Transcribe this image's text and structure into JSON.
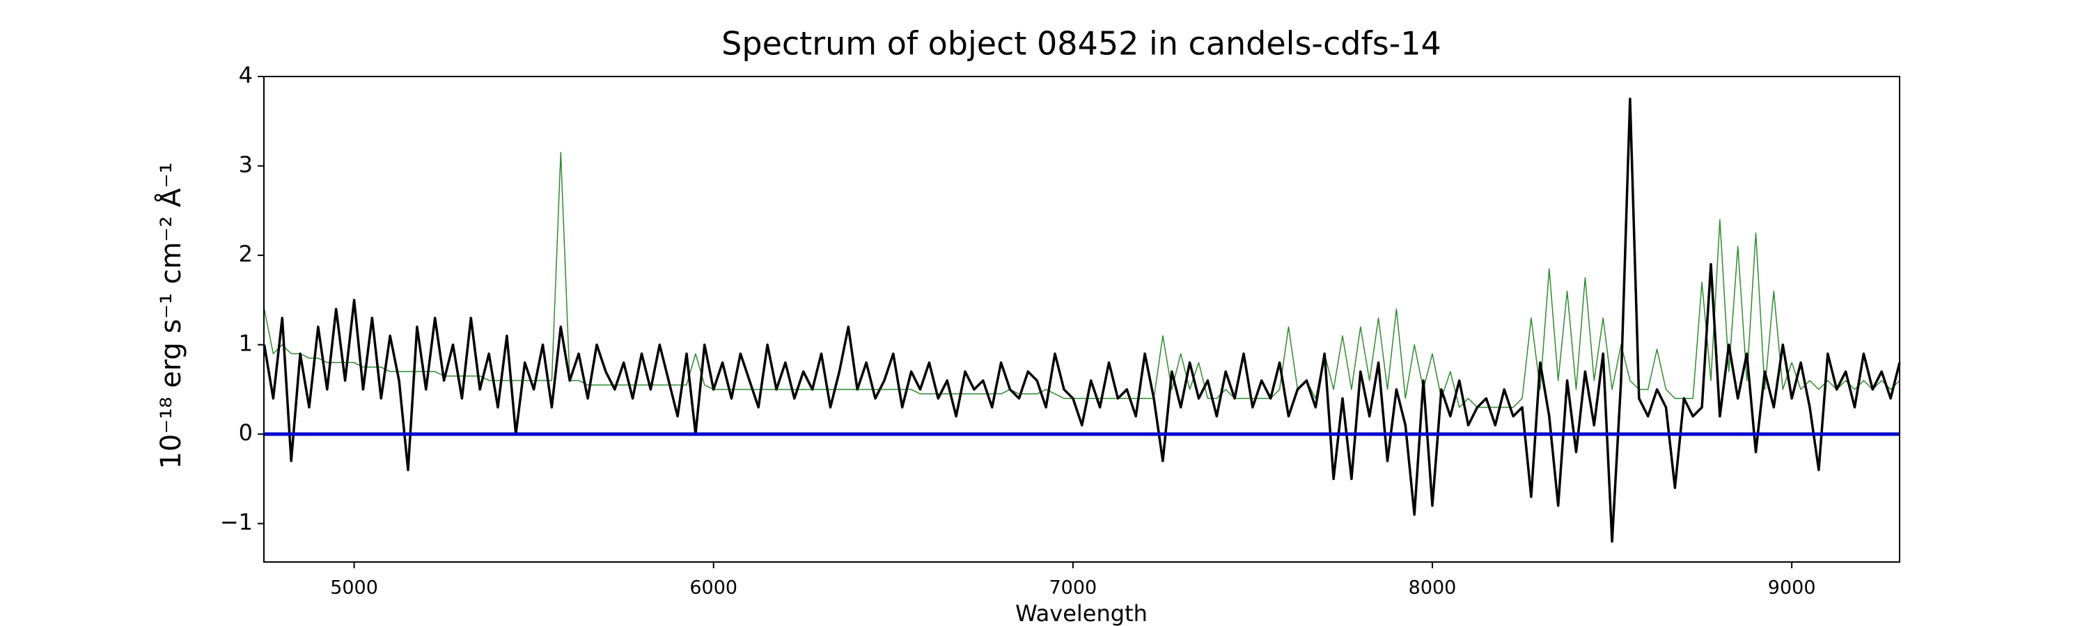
{
  "chart_data": {
    "type": "line",
    "title": "Spectrum of object 08452 in candels-cdfs-14",
    "xlabel": "Wavelength",
    "ylabel": "10⁻¹⁸ erg s⁻¹ cm⁻² Å⁻¹",
    "xlim": [
      4749,
      9300
    ],
    "ylim": [
      -1.43,
      4
    ],
    "xticks": [
      5000,
      6000,
      7000,
      8000,
      9000
    ],
    "yticks": [
      {
        "value": -1,
        "label": "−1"
      },
      0,
      1,
      2,
      3,
      4
    ],
    "hline": {
      "value": 0,
      "color": "#0000cc"
    },
    "x": [
      4750,
      4775,
      4800,
      4825,
      4850,
      4875,
      4900,
      4925,
      4950,
      4975,
      5000,
      5025,
      5050,
      5075,
      5100,
      5125,
      5150,
      5175,
      5200,
      5225,
      5250,
      5275,
      5300,
      5325,
      5350,
      5375,
      5400,
      5425,
      5450,
      5475,
      5500,
      5525,
      5550,
      5575,
      5600,
      5625,
      5650,
      5675,
      5700,
      5725,
      5750,
      5775,
      5800,
      5825,
      5850,
      5875,
      5900,
      5925,
      5950,
      5975,
      6000,
      6025,
      6050,
      6075,
      6100,
      6125,
      6150,
      6175,
      6200,
      6225,
      6250,
      6275,
      6300,
      6325,
      6350,
      6375,
      6400,
      6425,
      6450,
      6475,
      6500,
      6525,
      6550,
      6575,
      6600,
      6625,
      6650,
      6675,
      6700,
      6725,
      6750,
      6775,
      6800,
      6825,
      6850,
      6875,
      6900,
      6925,
      6950,
      6975,
      7000,
      7025,
      7050,
      7075,
      7100,
      7125,
      7150,
      7175,
      7200,
      7225,
      7250,
      7275,
      7300,
      7325,
      7350,
      7375,
      7400,
      7425,
      7450,
      7475,
      7500,
      7525,
      7550,
      7575,
      7600,
      7625,
      7650,
      7675,
      7700,
      7725,
      7750,
      7775,
      7800,
      7825,
      7850,
      7875,
      7900,
      7925,
      7950,
      7975,
      8000,
      8025,
      8050,
      8075,
      8100,
      8125,
      8150,
      8175,
      8200,
      8225,
      8250,
      8275,
      8300,
      8325,
      8350,
      8375,
      8400,
      8425,
      8450,
      8475,
      8500,
      8525,
      8550,
      8575,
      8600,
      8625,
      8650,
      8675,
      8700,
      8725,
      8750,
      8775,
      8800,
      8825,
      8850,
      8875,
      8900,
      8925,
      8950,
      8975,
      9000,
      9025,
      9050,
      9075,
      9100,
      9125,
      9150,
      9175,
      9200,
      9225,
      9250,
      9275,
      9300
    ],
    "series": [
      {
        "color": "#2e8b2e",
        "width": 1.5,
        "values": [
          1.4,
          0.9,
          1.0,
          0.9,
          0.9,
          0.85,
          0.85,
          0.8,
          0.8,
          0.8,
          0.8,
          0.75,
          0.75,
          0.75,
          0.7,
          0.7,
          0.7,
          0.7,
          0.7,
          0.7,
          0.65,
          0.65,
          0.65,
          0.65,
          0.65,
          0.6,
          0.6,
          0.6,
          0.6,
          0.6,
          0.6,
          0.6,
          0.6,
          3.15,
          0.6,
          0.6,
          0.55,
          0.55,
          0.55,
          0.55,
          0.55,
          0.55,
          0.55,
          0.55,
          0.55,
          0.55,
          0.55,
          0.55,
          0.9,
          0.55,
          0.5,
          0.5,
          0.5,
          0.5,
          0.5,
          0.5,
          0.5,
          0.5,
          0.5,
          0.5,
          0.5,
          0.5,
          0.5,
          0.5,
          0.5,
          0.5,
          0.5,
          0.5,
          0.5,
          0.5,
          0.5,
          0.5,
          0.5,
          0.45,
          0.45,
          0.45,
          0.45,
          0.45,
          0.45,
          0.45,
          0.45,
          0.45,
          0.45,
          0.5,
          0.45,
          0.45,
          0.45,
          0.5,
          0.45,
          0.4,
          0.4,
          0.4,
          0.4,
          0.4,
          0.4,
          0.4,
          0.4,
          0.4,
          0.4,
          0.4,
          1.1,
          0.5,
          0.9,
          0.5,
          0.8,
          0.4,
          0.4,
          0.5,
          0.4,
          0.4,
          0.4,
          0.4,
          0.4,
          0.5,
          1.2,
          0.5,
          0.6,
          0.4,
          0.9,
          0.5,
          1.1,
          0.5,
          1.2,
          0.6,
          1.3,
          0.5,
          1.4,
          0.4,
          1.0,
          0.5,
          0.9,
          0.4,
          0.7,
          0.3,
          0.4,
          0.3,
          0.3,
          0.3,
          0.3,
          0.3,
          0.4,
          1.3,
          0.5,
          1.85,
          0.6,
          1.6,
          0.5,
          1.75,
          0.6,
          1.3,
          0.5,
          1.0,
          0.6,
          0.5,
          0.5,
          0.95,
          0.5,
          0.4,
          0.4,
          0.4,
          1.7,
          0.6,
          2.4,
          0.7,
          2.1,
          0.6,
          2.25,
          0.5,
          1.6,
          0.5,
          0.8,
          0.5,
          0.6,
          0.5,
          0.6,
          0.5,
          0.6,
          0.5,
          0.6,
          0.5,
          0.6,
          0.5,
          0.6
        ]
      },
      {
        "color": "#000000",
        "width": 3.5,
        "values": [
          1.0,
          0.4,
          1.3,
          -0.3,
          0.9,
          0.3,
          1.2,
          0.5,
          1.4,
          0.6,
          1.5,
          0.5,
          1.3,
          0.4,
          1.1,
          0.6,
          -0.4,
          1.2,
          0.5,
          1.3,
          0.6,
          1.0,
          0.4,
          1.3,
          0.5,
          0.9,
          0.3,
          1.1,
          0.0,
          0.8,
          0.5,
          1.0,
          0.3,
          1.2,
          0.6,
          0.9,
          0.4,
          1.0,
          0.7,
          0.5,
          0.8,
          0.4,
          0.9,
          0.5,
          1.0,
          0.6,
          0.2,
          0.9,
          0.0,
          1.0,
          0.5,
          0.8,
          0.4,
          0.9,
          0.6,
          0.3,
          1.0,
          0.5,
          0.8,
          0.4,
          0.7,
          0.5,
          0.9,
          0.3,
          0.7,
          1.2,
          0.5,
          0.8,
          0.4,
          0.6,
          0.9,
          0.3,
          0.7,
          0.5,
          0.8,
          0.4,
          0.6,
          0.2,
          0.7,
          0.5,
          0.6,
          0.3,
          0.8,
          0.5,
          0.4,
          0.7,
          0.6,
          0.3,
          0.9,
          0.5,
          0.4,
          0.1,
          0.6,
          0.3,
          0.8,
          0.4,
          0.5,
          0.2,
          0.9,
          0.4,
          -0.3,
          0.7,
          0.3,
          0.8,
          0.4,
          0.6,
          0.2,
          0.7,
          0.4,
          0.9,
          0.3,
          0.6,
          0.4,
          0.8,
          0.2,
          0.5,
          0.6,
          0.3,
          0.9,
          -0.5,
          0.4,
          -0.5,
          0.7,
          0.2,
          0.8,
          -0.3,
          0.5,
          0.1,
          -0.9,
          0.6,
          -0.8,
          0.5,
          0.2,
          0.6,
          0.1,
          0.3,
          0.4,
          0.1,
          0.5,
          0.2,
          0.3,
          -0.7,
          0.8,
          0.2,
          -0.8,
          0.6,
          -0.2,
          0.7,
          0.1,
          0.9,
          -1.2,
          0.6,
          3.75,
          0.4,
          0.2,
          0.5,
          0.3,
          -0.6,
          0.4,
          0.2,
          0.3,
          1.9,
          0.2,
          1.0,
          0.4,
          0.9,
          -0.2,
          0.7,
          0.3,
          1.0,
          0.4,
          0.8,
          0.3,
          -0.4,
          0.9,
          0.5,
          0.7,
          0.3,
          0.9,
          0.5,
          0.7,
          0.4,
          0.8
        ]
      }
    ]
  }
}
